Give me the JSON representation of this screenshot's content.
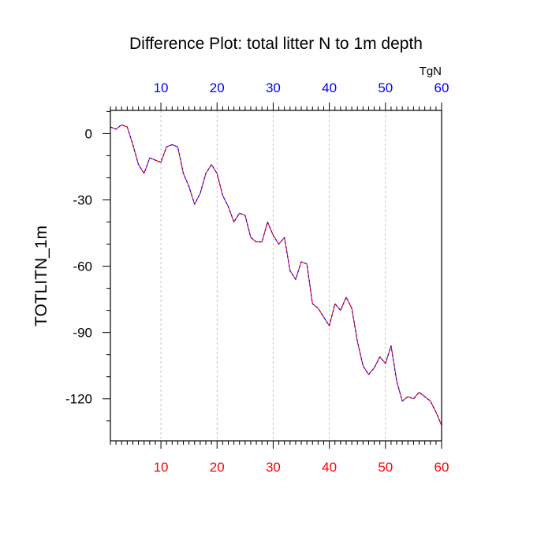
{
  "chart_data": {
    "type": "line",
    "title": "Difference Plot: total litter N to 1m depth",
    "ylabel": "TOTLITN_1m",
    "top_axis_unit": "TgN",
    "xlim": [
      1,
      60
    ],
    "ylim": [
      -139,
      10.5
    ],
    "x_ticks": [
      10,
      20,
      30,
      40,
      50,
      60
    ],
    "y_ticks": [
      0,
      -30,
      -60,
      -90,
      -120
    ],
    "grid": "vertical dashed at major x ticks",
    "line_style": "dashed",
    "colors": {
      "top_tick_labels": "#0000ff",
      "bottom_tick_labels": "#ff0000",
      "line_dash_a": "#0000ff",
      "line_dash_b": "#ff0000"
    },
    "series": [
      {
        "x": [
          1,
          2,
          3,
          4,
          5,
          6,
          7,
          8,
          9,
          10,
          11,
          12,
          13,
          14,
          15,
          16,
          17,
          18,
          19,
          20,
          21,
          22,
          23,
          24,
          25,
          26,
          27,
          28,
          29,
          30,
          31,
          32,
          33,
          34,
          35,
          36,
          37,
          38,
          39,
          40,
          41,
          42,
          43,
          44,
          45,
          46,
          47,
          48,
          49,
          50,
          51,
          52,
          53,
          54,
          55,
          56,
          57,
          58,
          59,
          60
        ],
        "values": [
          3,
          2,
          4,
          3,
          -5,
          -14,
          -18,
          -11,
          -12,
          -13,
          -6,
          -5,
          -6,
          -18,
          -24,
          -32,
          -27,
          -18,
          -14,
          -18,
          -28,
          -33,
          -40,
          -36,
          -37,
          -47,
          -49,
          -49,
          -40,
          -46,
          -50,
          -47,
          -62,
          -66,
          -58,
          -59,
          -77,
          -79,
          -83,
          -87,
          -77,
          -80,
          -74,
          -79,
          -94,
          -105,
          -109,
          -106,
          -101,
          -104,
          -96,
          -112,
          -121,
          -119,
          -120,
          -117,
          -119,
          -121,
          -126,
          -132
        ]
      }
    ]
  }
}
